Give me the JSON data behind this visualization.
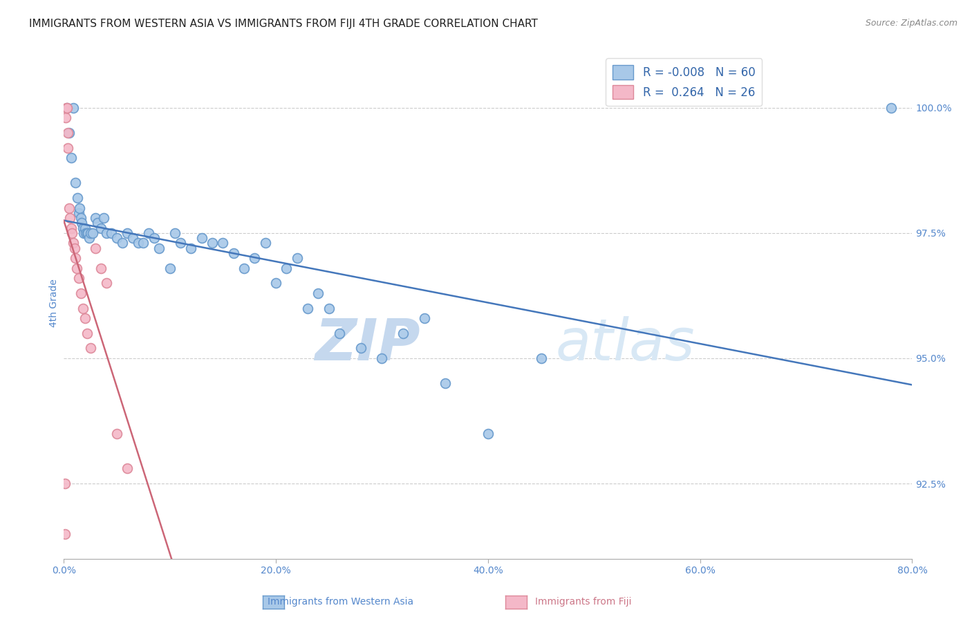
{
  "title": "IMMIGRANTS FROM WESTERN ASIA VS IMMIGRANTS FROM FIJI 4TH GRADE CORRELATION CHART",
  "source": "Source: ZipAtlas.com",
  "ylabel": "4th Grade",
  "x_tick_labels": [
    "0.0%",
    "20.0%",
    "40.0%",
    "60.0%",
    "80.0%"
  ],
  "x_tick_values": [
    0.0,
    20.0,
    40.0,
    60.0,
    80.0
  ],
  "y_tick_labels": [
    "100.0%",
    "97.5%",
    "95.0%",
    "92.5%"
  ],
  "y_tick_values": [
    100.0,
    97.5,
    95.0,
    92.5
  ],
  "xlim": [
    0.0,
    80.0
  ],
  "ylim": [
    91.0,
    101.2
  ],
  "legend_r_blue": "-0.008",
  "legend_n_blue": "60",
  "legend_r_pink": "0.264",
  "legend_n_pink": "26",
  "legend_label_blue": "Immigrants from Western Asia",
  "legend_label_pink": "Immigrants from Fiji",
  "blue_color": "#A8C8E8",
  "pink_color": "#F4B8C8",
  "blue_edge_color": "#6699CC",
  "pink_edge_color": "#DD8899",
  "blue_line_color": "#4477BB",
  "pink_line_color": "#CC6677",
  "watermark_zip": "ZIP",
  "watermark_atlas": "atlas",
  "title_fontsize": 11,
  "axis_label_fontsize": 10,
  "tick_fontsize": 10,
  "blue_scatter_x": [
    0.3,
    0.5,
    0.7,
    0.9,
    1.1,
    1.3,
    1.4,
    1.5,
    1.6,
    1.7,
    1.8,
    1.9,
    2.0,
    2.1,
    2.2,
    2.3,
    2.4,
    2.5,
    2.7,
    3.0,
    3.2,
    3.5,
    3.8,
    4.0,
    4.5,
    5.0,
    5.5,
    6.0,
    6.5,
    7.0,
    7.5,
    8.0,
    8.5,
    9.0,
    10.0,
    10.5,
    11.0,
    12.0,
    13.0,
    14.0,
    15.0,
    16.0,
    17.0,
    18.0,
    19.0,
    20.0,
    21.0,
    22.0,
    23.0,
    24.0,
    25.0,
    26.0,
    28.0,
    30.0,
    32.0,
    34.0,
    36.0,
    40.0,
    45.0,
    78.0
  ],
  "blue_scatter_y": [
    100.0,
    99.5,
    99.0,
    100.0,
    98.5,
    98.2,
    97.9,
    98.0,
    97.8,
    97.7,
    97.6,
    97.5,
    97.6,
    97.5,
    97.5,
    97.5,
    97.4,
    97.5,
    97.5,
    97.8,
    97.7,
    97.6,
    97.8,
    97.5,
    97.5,
    97.4,
    97.3,
    97.5,
    97.4,
    97.3,
    97.3,
    97.5,
    97.4,
    97.2,
    96.8,
    97.5,
    97.3,
    97.2,
    97.4,
    97.3,
    97.3,
    97.1,
    96.8,
    97.0,
    97.3,
    96.5,
    96.8,
    97.0,
    96.0,
    96.3,
    96.0,
    95.5,
    95.2,
    95.0,
    95.5,
    95.8,
    94.5,
    93.5,
    95.0,
    100.0
  ],
  "pink_scatter_x": [
    0.1,
    0.15,
    0.2,
    0.25,
    0.3,
    0.35,
    0.4,
    0.5,
    0.6,
    0.7,
    0.8,
    0.9,
    1.0,
    1.1,
    1.2,
    1.4,
    1.6,
    1.8,
    2.0,
    2.2,
    2.5,
    3.0,
    3.5,
    4.0,
    5.0,
    6.0
  ],
  "pink_scatter_y": [
    91.5,
    92.5,
    99.8,
    100.0,
    100.0,
    99.5,
    99.2,
    98.0,
    97.8,
    97.6,
    97.5,
    97.3,
    97.2,
    97.0,
    96.8,
    96.6,
    96.3,
    96.0,
    95.8,
    95.5,
    95.2,
    97.2,
    96.8,
    96.5,
    93.5,
    92.8
  ]
}
